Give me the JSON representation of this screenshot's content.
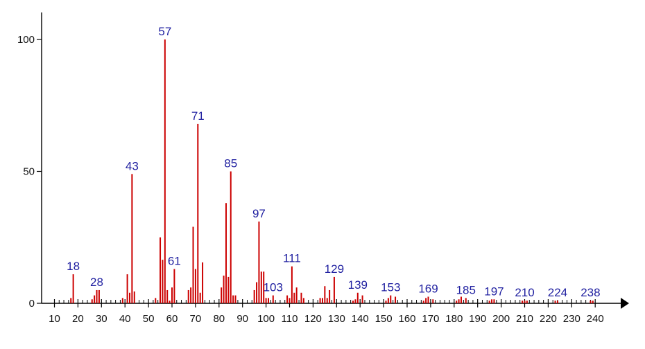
{
  "chart_data": {
    "type": "bar",
    "title": "",
    "xlabel": "",
    "ylabel": "",
    "xlim": [
      6,
      243
    ],
    "ylim": [
      0,
      100
    ],
    "grid": false,
    "legend": "none",
    "x_ticks": [
      10,
      20,
      30,
      40,
      50,
      60,
      70,
      80,
      90,
      100,
      110,
      120,
      130,
      140,
      150,
      160,
      170,
      180,
      190,
      200,
      210,
      220,
      230,
      240
    ],
    "y_ticks": [
      0,
      50,
      100
    ],
    "bar_color": "#cc0000",
    "label_color": "#1f1fa0",
    "peaks": [
      {
        "x": 17,
        "y": 2
      },
      {
        "x": 18,
        "y": 11
      },
      {
        "x": 26,
        "y": 1.5
      },
      {
        "x": 27,
        "y": 3
      },
      {
        "x": 28,
        "y": 5
      },
      {
        "x": 29,
        "y": 5
      },
      {
        "x": 39,
        "y": 2
      },
      {
        "x": 41,
        "y": 11
      },
      {
        "x": 42,
        "y": 4
      },
      {
        "x": 43,
        "y": 49
      },
      {
        "x": 44,
        "y": 4.5
      },
      {
        "x": 53,
        "y": 2
      },
      {
        "x": 55,
        "y": 25
      },
      {
        "x": 56,
        "y": 16.5
      },
      {
        "x": 57,
        "y": 100
      },
      {
        "x": 58,
        "y": 5
      },
      {
        "x": 59,
        "y": 1
      },
      {
        "x": 60,
        "y": 6
      },
      {
        "x": 61,
        "y": 13
      },
      {
        "x": 67,
        "y": 5
      },
      {
        "x": 68,
        "y": 6
      },
      {
        "x": 69,
        "y": 29
      },
      {
        "x": 70,
        "y": 13
      },
      {
        "x": 71,
        "y": 68
      },
      {
        "x": 72,
        "y": 4
      },
      {
        "x": 73,
        "y": 15.5
      },
      {
        "x": 81,
        "y": 6
      },
      {
        "x": 82,
        "y": 10.5
      },
      {
        "x": 83,
        "y": 38
      },
      {
        "x": 84,
        "y": 10
      },
      {
        "x": 85,
        "y": 50
      },
      {
        "x": 86,
        "y": 3
      },
      {
        "x": 87,
        "y": 3
      },
      {
        "x": 95,
        "y": 5
      },
      {
        "x": 96,
        "y": 8
      },
      {
        "x": 97,
        "y": 31
      },
      {
        "x": 98,
        "y": 12
      },
      {
        "x": 99,
        "y": 12
      },
      {
        "x": 100,
        "y": 2
      },
      {
        "x": 101,
        "y": 2
      },
      {
        "x": 103,
        "y": 3
      },
      {
        "x": 109,
        "y": 3
      },
      {
        "x": 110,
        "y": 2
      },
      {
        "x": 111,
        "y": 14
      },
      {
        "x": 112,
        "y": 4
      },
      {
        "x": 113,
        "y": 6
      },
      {
        "x": 115,
        "y": 4
      },
      {
        "x": 116,
        "y": 2
      },
      {
        "x": 123,
        "y": 2
      },
      {
        "x": 124,
        "y": 2
      },
      {
        "x": 125,
        "y": 6.5
      },
      {
        "x": 126,
        "y": 2
      },
      {
        "x": 127,
        "y": 5
      },
      {
        "x": 129,
        "y": 10
      },
      {
        "x": 137,
        "y": 1
      },
      {
        "x": 138,
        "y": 1.5
      },
      {
        "x": 139,
        "y": 4
      },
      {
        "x": 141,
        "y": 3
      },
      {
        "x": 151,
        "y": 1
      },
      {
        "x": 152,
        "y": 2
      },
      {
        "x": 153,
        "y": 3
      },
      {
        "x": 155,
        "y": 2.5
      },
      {
        "x": 167,
        "y": 1
      },
      {
        "x": 168,
        "y": 2
      },
      {
        "x": 169,
        "y": 2.5
      },
      {
        "x": 171,
        "y": 1.5
      },
      {
        "x": 181,
        "y": 1
      },
      {
        "x": 182,
        "y": 1.5
      },
      {
        "x": 183,
        "y": 2.5
      },
      {
        "x": 185,
        "y": 2
      },
      {
        "x": 195,
        "y": 1
      },
      {
        "x": 196,
        "y": 1.5
      },
      {
        "x": 197,
        "y": 1.5
      },
      {
        "x": 209,
        "y": 1
      },
      {
        "x": 210,
        "y": 1
      },
      {
        "x": 211,
        "y": 1
      },
      {
        "x": 223,
        "y": 1
      },
      {
        "x": 224,
        "y": 1
      },
      {
        "x": 238,
        "y": 1
      },
      {
        "x": 239,
        "y": 1
      }
    ],
    "peak_labels": [
      {
        "x": 18,
        "y": 11,
        "text": "18"
      },
      {
        "x": 28,
        "y": 5,
        "text": "28"
      },
      {
        "x": 43,
        "y": 49,
        "text": "43"
      },
      {
        "x": 57,
        "y": 100,
        "text": "57"
      },
      {
        "x": 61,
        "y": 13,
        "text": "61"
      },
      {
        "x": 71,
        "y": 68,
        "text": "71"
      },
      {
        "x": 85,
        "y": 50,
        "text": "85"
      },
      {
        "x": 97,
        "y": 31,
        "text": "97"
      },
      {
        "x": 103,
        "y": 3,
        "text": "103"
      },
      {
        "x": 111,
        "y": 14,
        "text": "111"
      },
      {
        "x": 129,
        "y": 10,
        "text": "129"
      },
      {
        "x": 139,
        "y": 4,
        "text": "139"
      },
      {
        "x": 153,
        "y": 3,
        "text": "153"
      },
      {
        "x": 169,
        "y": 2.5,
        "text": "169"
      },
      {
        "x": 185,
        "y": 2,
        "text": "185"
      },
      {
        "x": 197,
        "y": 1.5,
        "text": "197"
      },
      {
        "x": 210,
        "y": 1,
        "text": "210"
      },
      {
        "x": 224,
        "y": 1,
        "text": "224"
      },
      {
        "x": 238,
        "y": 1,
        "text": "238"
      }
    ]
  }
}
